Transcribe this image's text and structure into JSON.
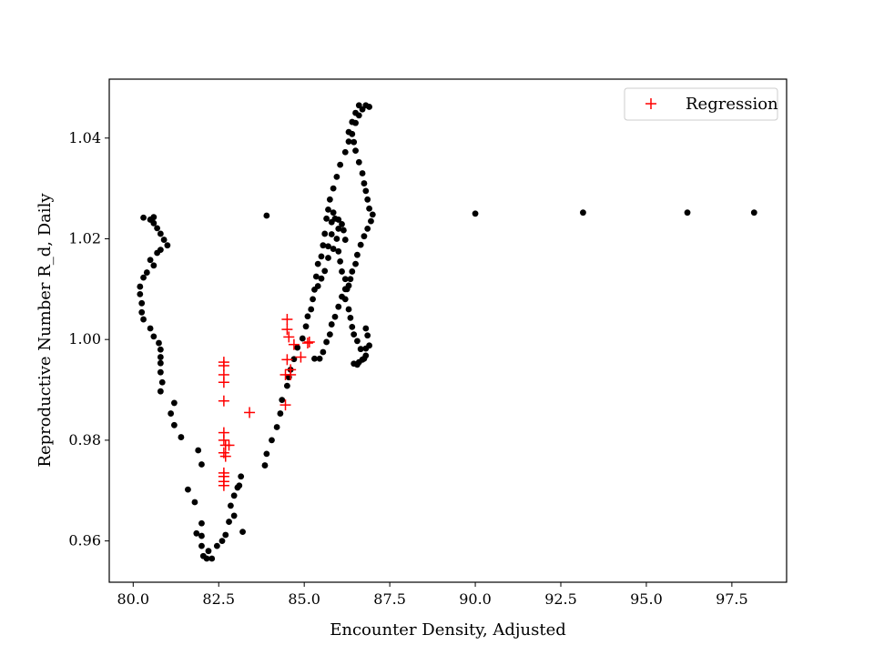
{
  "chart_data": {
    "type": "scatter",
    "title": "",
    "xlabel": "Encounter Density, Adjusted",
    "ylabel": "Reproductive Number R_d, Daily",
    "xlim": [
      79.3,
      99.1
    ],
    "ylim": [
      0.9518,
      1.0517
    ],
    "xticks": [
      80.0,
      82.5,
      85.0,
      87.5,
      90.0,
      92.5,
      95.0,
      97.5
    ],
    "xtick_labels": [
      "80.0",
      "82.5",
      "85.0",
      "87.5",
      "90.0",
      "92.5",
      "95.0",
      "97.5"
    ],
    "yticks": [
      0.96,
      0.98,
      1.0,
      1.02,
      1.04
    ],
    "ytick_labels": [
      "0.96",
      "0.98",
      "1.00",
      "1.02",
      "1.04"
    ],
    "grid": false,
    "legend_position": "top-right",
    "series": [
      {
        "marker": "dot",
        "color": "#000000",
        "points": [
          [
            80.3,
            1.0242
          ],
          [
            80.5,
            1.0238
          ],
          [
            80.6,
            1.0243
          ],
          [
            80.6,
            1.0231
          ],
          [
            80.7,
            1.0221
          ],
          [
            80.8,
            1.021
          ],
          [
            80.9,
            1.0198
          ],
          [
            81.0,
            1.0187
          ],
          [
            80.7,
            1.0172
          ],
          [
            80.8,
            1.0178
          ],
          [
            80.5,
            1.0158
          ],
          [
            80.6,
            1.0147
          ],
          [
            80.4,
            1.0133
          ],
          [
            80.3,
            1.0123
          ],
          [
            80.2,
            1.0105
          ],
          [
            80.2,
            1.009
          ],
          [
            80.25,
            1.0072
          ],
          [
            80.25,
            1.0054
          ],
          [
            80.3,
            1.004
          ],
          [
            80.5,
            1.0022
          ],
          [
            80.6,
            1.0006
          ],
          [
            80.75,
            0.9993
          ],
          [
            80.8,
            0.998
          ],
          [
            80.8,
            0.9965
          ],
          [
            80.8,
            0.9953
          ],
          [
            80.8,
            0.9935
          ],
          [
            80.85,
            0.9915
          ],
          [
            80.8,
            0.9897
          ],
          [
            81.2,
            0.9874
          ],
          [
            81.1,
            0.9853
          ],
          [
            81.2,
            0.983
          ],
          [
            81.4,
            0.9806
          ],
          [
            81.6,
            0.9702
          ],
          [
            81.8,
            0.9677
          ],
          [
            81.85,
            0.9615
          ],
          [
            81.9,
            0.978
          ],
          [
            82.0,
            0.9752
          ],
          [
            82.0,
            0.9635
          ],
          [
            82.0,
            0.961
          ],
          [
            82.0,
            0.959
          ],
          [
            82.05,
            0.957
          ],
          [
            82.15,
            0.9565
          ],
          [
            82.2,
            0.958
          ],
          [
            82.3,
            0.9565
          ],
          [
            82.45,
            0.959
          ],
          [
            82.6,
            0.96
          ],
          [
            82.7,
            0.9612
          ],
          [
            82.8,
            0.9638
          ],
          [
            82.85,
            0.967
          ],
          [
            82.95,
            0.969
          ],
          [
            83.05,
            0.9706
          ],
          [
            83.15,
            0.9728
          ],
          [
            83.1,
            0.971
          ],
          [
            82.95,
            0.965
          ],
          [
            83.2,
            0.9618
          ],
          [
            83.85,
            0.975
          ],
          [
            83.9,
            0.9773
          ],
          [
            84.05,
            0.98
          ],
          [
            84.2,
            0.9826
          ],
          [
            84.3,
            0.9853
          ],
          [
            84.35,
            0.988
          ],
          [
            84.5,
            0.9908
          ],
          [
            84.55,
            0.9925
          ],
          [
            84.6,
            0.994
          ],
          [
            84.7,
            0.9961
          ],
          [
            84.8,
            0.9984
          ],
          [
            84.95,
            1.0002
          ],
          [
            85.05,
            1.0026
          ],
          [
            85.1,
            1.0046
          ],
          [
            85.2,
            1.006
          ],
          [
            85.25,
            1.008
          ],
          [
            85.3,
            1.0099
          ],
          [
            85.4,
            1.0106
          ],
          [
            85.5,
            1.0121
          ],
          [
            85.6,
            1.0136
          ],
          [
            85.7,
            1.0162
          ],
          [
            85.7,
            1.0185
          ],
          [
            85.8,
            1.0209
          ],
          [
            85.8,
            1.0233
          ],
          [
            85.85,
            1.0252
          ],
          [
            85.9,
            1.024
          ],
          [
            86.0,
            1.0238
          ],
          [
            86.1,
            1.0229
          ],
          [
            86.15,
            1.0217
          ],
          [
            86.2,
            1.0198
          ],
          [
            85.85,
            1.018
          ],
          [
            85.95,
            1.02
          ],
          [
            86.0,
            1.022
          ],
          [
            86.0,
            1.0175
          ],
          [
            86.05,
            1.0155
          ],
          [
            86.1,
            1.0135
          ],
          [
            86.2,
            1.012
          ],
          [
            86.25,
            1.01
          ],
          [
            86.2,
            1.008
          ],
          [
            86.3,
            1.006
          ],
          [
            86.35,
            1.0043
          ],
          [
            86.4,
            1.0025
          ],
          [
            86.45,
            1.001
          ],
          [
            86.55,
            0.9997
          ],
          [
            86.65,
            0.9981
          ],
          [
            86.75,
            0.9962
          ],
          [
            86.8,
            0.9982
          ],
          [
            86.9,
            0.9988
          ],
          [
            86.85,
            1.0008
          ],
          [
            86.8,
            1.0022
          ],
          [
            86.45,
            0.9952
          ],
          [
            86.55,
            0.995
          ],
          [
            86.6,
            0.9955
          ],
          [
            86.7,
            0.996
          ],
          [
            86.8,
            0.9968
          ],
          [
            85.3,
            0.9962
          ],
          [
            85.45,
            0.9962
          ],
          [
            85.55,
            0.9975
          ],
          [
            85.65,
            0.9995
          ],
          [
            85.75,
            1.001
          ],
          [
            85.8,
            1.003
          ],
          [
            85.9,
            1.0045
          ],
          [
            86.0,
            1.0065
          ],
          [
            86.1,
            1.0085
          ],
          [
            86.2,
            1.01
          ],
          [
            86.3,
            1.0107
          ],
          [
            86.35,
            1.012
          ],
          [
            86.4,
            1.0135
          ],
          [
            86.5,
            1.015
          ],
          [
            86.55,
            1.0168
          ],
          [
            86.65,
            1.0188
          ],
          [
            86.75,
            1.0205
          ],
          [
            86.85,
            1.022
          ],
          [
            86.95,
            1.0235
          ],
          [
            87.0,
            1.0248
          ],
          [
            86.9,
            1.026
          ],
          [
            86.85,
            1.0278
          ],
          [
            86.8,
            1.0295
          ],
          [
            86.75,
            1.031
          ],
          [
            86.7,
            1.033
          ],
          [
            86.6,
            1.0352
          ],
          [
            86.5,
            1.0375
          ],
          [
            86.45,
            1.0392
          ],
          [
            86.4,
            1.0408
          ],
          [
            86.5,
            1.043
          ],
          [
            86.6,
            1.0445
          ],
          [
            86.7,
            1.0457
          ],
          [
            86.8,
            1.0465
          ],
          [
            86.9,
            1.0462
          ],
          [
            86.6,
            1.0465
          ],
          [
            86.5,
            1.045
          ],
          [
            86.4,
            1.0432
          ],
          [
            86.3,
            1.0412
          ],
          [
            86.3,
            1.0393
          ],
          [
            86.2,
            1.0372
          ],
          [
            86.05,
            1.0347
          ],
          [
            85.95,
            1.0323
          ],
          [
            85.85,
            1.03
          ],
          [
            85.75,
            1.0278
          ],
          [
            85.7,
            1.0258
          ],
          [
            85.65,
            1.024
          ],
          [
            85.6,
            1.021
          ],
          [
            85.55,
            1.0187
          ],
          [
            85.5,
            1.0165
          ],
          [
            85.4,
            1.015
          ],
          [
            85.35,
            1.0125
          ],
          [
            83.9,
            1.0246
          ],
          [
            90.0,
            1.025
          ],
          [
            93.15,
            1.0252
          ],
          [
            96.2,
            1.0252
          ],
          [
            98.15,
            1.0252
          ]
        ]
      },
      {
        "name": "Regression",
        "marker": "plus",
        "color": "#ff0000",
        "points": [
          [
            82.65,
            0.9955
          ],
          [
            82.65,
            0.9948
          ],
          [
            82.65,
            0.993
          ],
          [
            82.65,
            0.9915
          ],
          [
            82.65,
            0.9878
          ],
          [
            82.65,
            0.9815
          ],
          [
            82.65,
            0.98
          ],
          [
            82.7,
            0.979
          ],
          [
            82.8,
            0.979
          ],
          [
            82.65,
            0.9775
          ],
          [
            82.7,
            0.9768
          ],
          [
            82.65,
            0.9735
          ],
          [
            82.65,
            0.9728
          ],
          [
            82.65,
            0.9718
          ],
          [
            82.65,
            0.971
          ],
          [
            83.4,
            0.9855
          ],
          [
            84.45,
            0.987
          ],
          [
            84.45,
            0.993
          ],
          [
            84.5,
            0.996
          ],
          [
            84.5,
            1.004
          ],
          [
            84.5,
            1.002
          ],
          [
            84.55,
            1.0005
          ],
          [
            84.6,
            0.994
          ],
          [
            84.6,
            0.993
          ],
          [
            84.7,
            0.999
          ],
          [
            84.9,
            0.9965
          ],
          [
            85.1,
            0.9993
          ],
          [
            85.15,
            0.9995
          ]
        ]
      }
    ]
  }
}
